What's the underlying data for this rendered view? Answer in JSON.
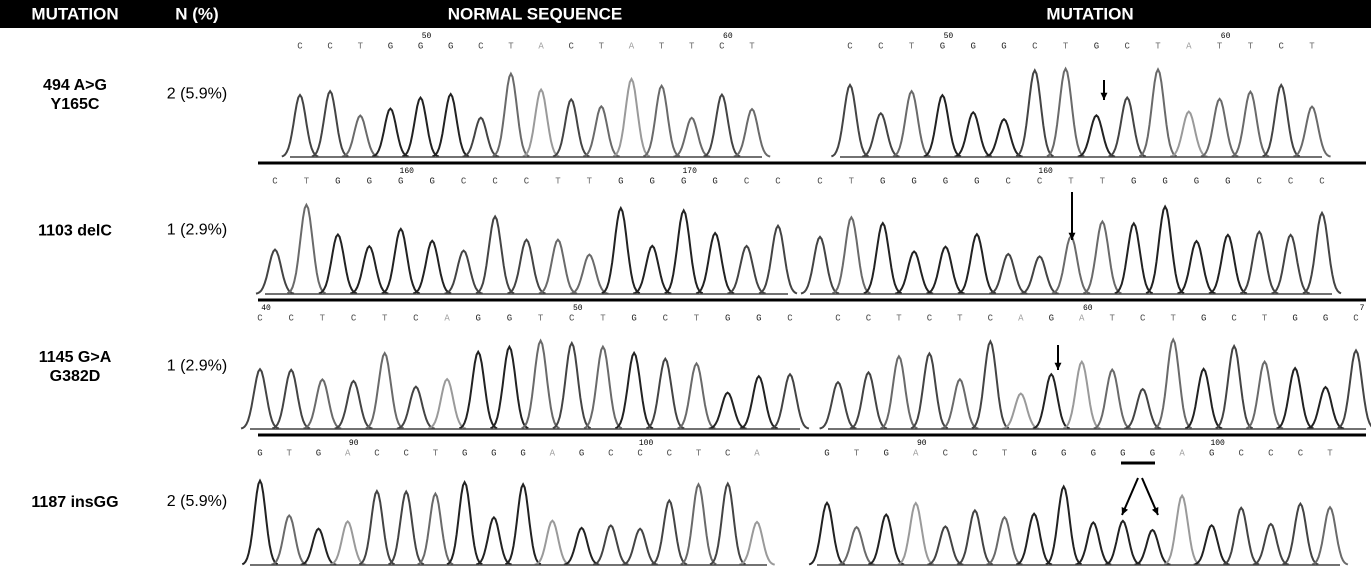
{
  "header": [
    "MUTATION",
    "N (%)",
    "NORMAL SEQUENCE",
    "MUTATION"
  ],
  "rows": [
    {
      "mutation": [
        "494 A>G",
        "Y165C"
      ],
      "n": "2 (5.9%)",
      "normal": {
        "bases": [
          "C",
          "C",
          "T",
          "G",
          "G",
          "G",
          "C",
          "T",
          "A",
          "C",
          "T",
          "A",
          "T",
          "T",
          "C",
          "T"
        ],
        "numbers": [
          "50",
          "60"
        ]
      },
      "mutant": {
        "bases": [
          "C",
          "C",
          "T",
          "G",
          "G",
          "G",
          "C",
          "T",
          "G",
          "C",
          "T",
          "A",
          "T",
          "T",
          "C",
          "T"
        ],
        "numbers": [
          "50",
          "60"
        ]
      }
    },
    {
      "mutation": [
        "1103 delC"
      ],
      "n": "1 (2.9%)",
      "normal": {
        "bases": [
          "C",
          "T",
          "G",
          "G",
          "G",
          "G",
          "C",
          "C",
          "C",
          "T",
          "T",
          "G",
          "G",
          "G",
          "G",
          "C",
          "C"
        ],
        "numbers": [
          "160",
          "170"
        ]
      },
      "mutant": {
        "bases": [
          "C",
          "T",
          "G",
          "G",
          "G",
          "G",
          "C",
          "C",
          "T",
          "T",
          "G",
          "G",
          "G",
          "G",
          "C",
          "C",
          "C"
        ],
        "numbers": [
          "160"
        ]
      }
    },
    {
      "mutation": [
        "1145 G>A",
        "G382D"
      ],
      "n": "1 (2.9%)",
      "normal": {
        "bases": [
          "C",
          "C",
          "T",
          "C",
          "T",
          "C",
          "A",
          "G",
          "G",
          "T",
          "C",
          "T",
          "G",
          "C",
          "T",
          "G",
          "G",
          "C"
        ],
        "numbers": [
          "40",
          "50"
        ]
      },
      "mutant": {
        "bases": [
          "C",
          "C",
          "T",
          "C",
          "T",
          "C",
          "A",
          "G",
          "A",
          "T",
          "C",
          "T",
          "G",
          "C",
          "T",
          "G",
          "G",
          "C"
        ],
        "numbers": [
          "60",
          "7"
        ]
      }
    },
    {
      "mutation": [
        "1187 insGG"
      ],
      "n": "2 (5.9%)",
      "normal": {
        "bases": [
          "G",
          "T",
          "G",
          "A",
          "C",
          "C",
          "T",
          "G",
          "G",
          "G",
          "A",
          "G",
          "C",
          "C",
          "C",
          "T",
          "C",
          "A"
        ],
        "numbers": [
          "90",
          "100"
        ]
      },
      "mutant": {
        "bases": [
          "G",
          "T",
          "G",
          "A",
          "C",
          "C",
          "T",
          "G",
          "G",
          "G",
          "G",
          "G",
          "A",
          "G",
          "C",
          "C",
          "C",
          "T"
        ],
        "numbers": [
          "90",
          "100"
        ]
      }
    }
  ]
}
